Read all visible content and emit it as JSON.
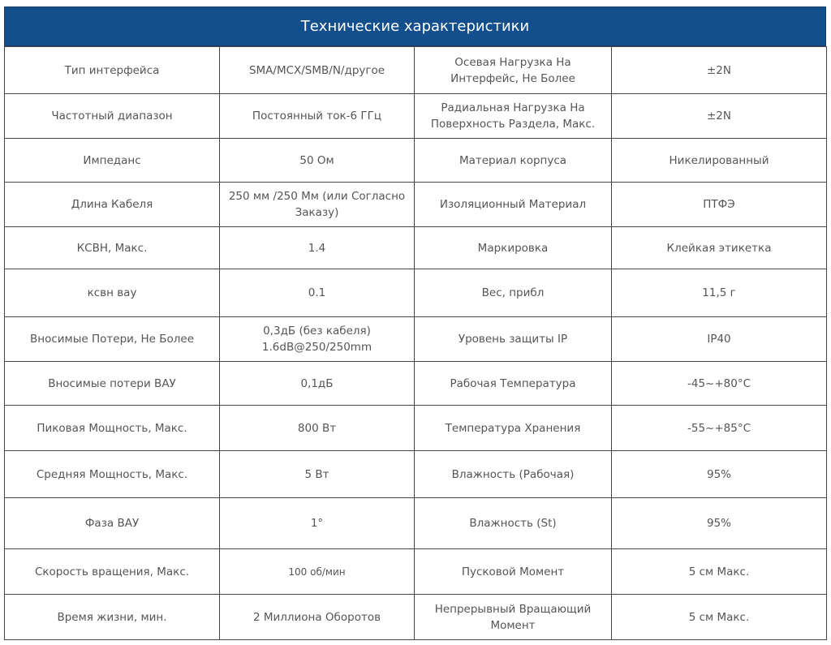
{
  "title": "Технические характеристики",
  "rows": [
    [
      "Тип интерфейса",
      "SMA/MCX/SMB/N/другое",
      "Осевая Нагрузка На Интерфейс, Не Более",
      "±2N"
    ],
    [
      "Частотный диапазон",
      "Постоянный ток-6 ГГц",
      "Радиальная Нагрузка На Поверхность Раздела, Макс.",
      "±2N"
    ],
    [
      "Импеданс",
      "50 Ом",
      "Материал корпуса",
      "Никелированный"
    ],
    [
      "Длина Кабеля",
      "250 мм /250 Мм (или Согласно Заказу)",
      "Изоляционный Материал",
      "ПТФЭ"
    ],
    [
      "КСВН, Макс.",
      "1.4",
      "Маркировка",
      "Клейкая этикетка"
    ],
    [
      "ксвн вау",
      "0.1",
      "Вес, прибл",
      "11,5 г"
    ],
    [
      "Вносимые Потери, Не Более",
      "0,3дБ (без кабеля) 1.6dB@250/250mm",
      "Уровень защиты IP",
      "IP40"
    ],
    [
      "Вносимые потери ВАУ",
      "0,1дБ",
      "Рабочая Температура",
      "-45~+80°C"
    ],
    [
      "Пиковая Мощность, Макс.",
      "800 Вт",
      "Температура Хранения",
      "-55~+85°C"
    ],
    [
      "Средняя Мощность, Макс.",
      "5 Вт",
      "Влажность (Рабочая)",
      "95%"
    ],
    [
      "Фаза ВАУ",
      "1°",
      "Влажность (St)",
      "95%"
    ],
    [
      "Скорость вращения, Макс.",
      "100 об/мин",
      "Пусковой Момент",
      "5 см Макс."
    ],
    [
      "Время жизни, мин.",
      "2 Миллиона Оборотов",
      "Непрерывный Вращающий Момент",
      "5 см Макс."
    ]
  ],
  "colors": {
    "header_bg": "#134f8c",
    "header_text": "#ffffff",
    "cell_text": "#555555"
  }
}
